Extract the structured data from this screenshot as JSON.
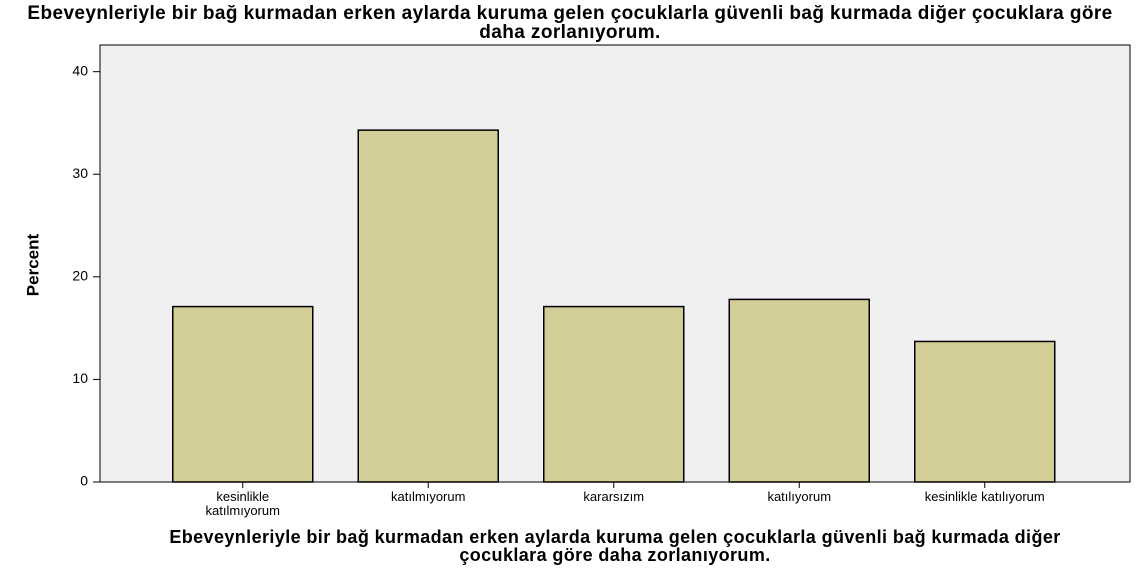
{
  "chart_data": {
    "type": "bar",
    "title": "Ebeveynleriyle bir bağ kurmadan erken aylarda kuruma gelen çocuklarla güvenli bağ kurmada diğer çocuklara göre daha zorlanıyorum.",
    "x_label": "Ebeveynleriyle bir bağ kurmadan erken aylarda kuruma gelen çocuklarla güvenli bağ kurmada diğer çocuklara göre daha zorlanıyorum.",
    "y_label": "Percent",
    "categories": [
      "kesinlikle katılmıyorum",
      "katılmıyorum",
      "kararsızım",
      "katılıyorum",
      "kesinlikle katılıyorum"
    ],
    "values": [
      17.1,
      34.3,
      17.1,
      17.8,
      13.7
    ],
    "color": "#d3ce97",
    "ylim": [
      0,
      42.6
    ],
    "yticks": [
      0,
      10,
      20,
      30,
      40
    ],
    "grid": false
  }
}
